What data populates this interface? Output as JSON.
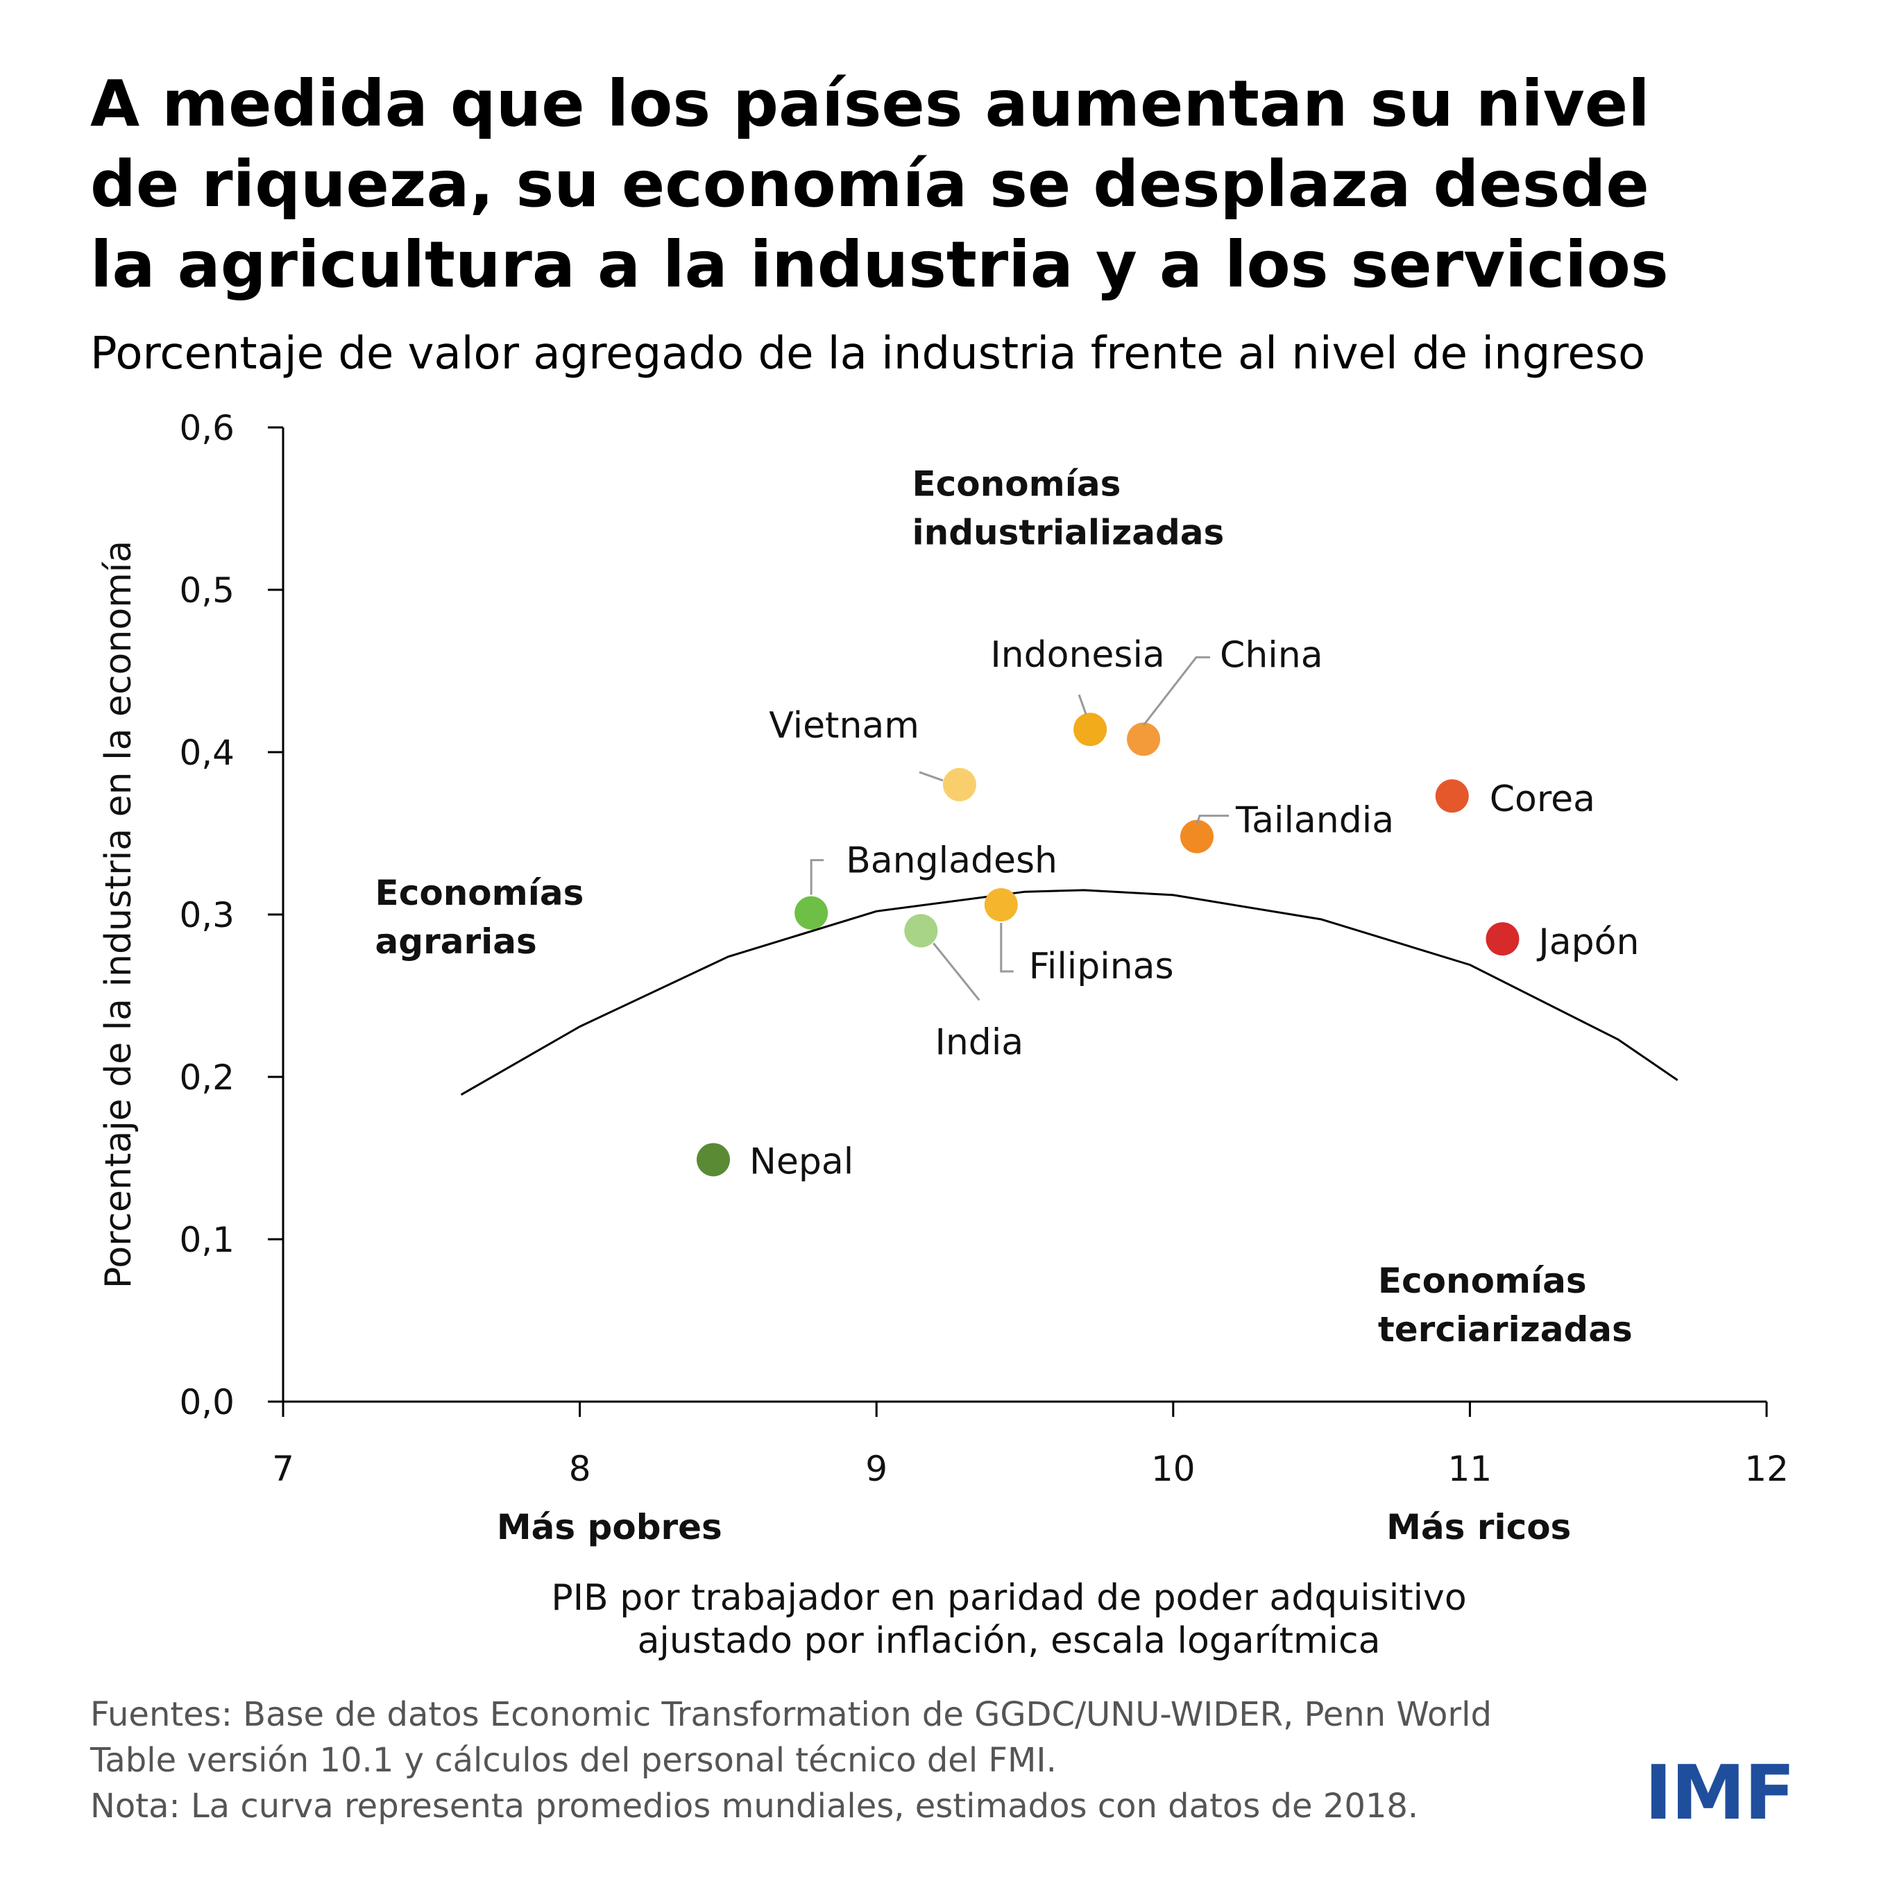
{
  "title_lines": [
    "A medida que los países aumentan su nivel",
    "de riqueza, su economía se desplaza desde",
    "la agricultura a la industria y a los servicios"
  ],
  "subtitle": "Porcentaje de valor agregado de la industria frente al nivel de ingreso",
  "chart_data": {
    "type": "scatter",
    "title": "Porcentaje de valor agregado de la industria frente al nivel de ingreso",
    "xlabel_lines": [
      "PIB por trabajador en paridad de poder adquisitivo",
      "ajustado por inflación, escala logarítmica"
    ],
    "ylabel": "Porcentaje de la industria en la economía",
    "xlim": [
      7,
      12
    ],
    "ylim": [
      0,
      0.6
    ],
    "x_ticks": [
      {
        "value": 7,
        "label": "7"
      },
      {
        "value": 8,
        "label": "8"
      },
      {
        "value": 9,
        "label": "9"
      },
      {
        "value": 10,
        "label": "10"
      },
      {
        "value": 11,
        "label": "11"
      },
      {
        "value": 12,
        "label": "12"
      }
    ],
    "y_ticks": [
      {
        "value": 0,
        "label": "0,0"
      },
      {
        "value": 0.1,
        "label": "0,1"
      },
      {
        "value": 0.2,
        "label": "0,2"
      },
      {
        "value": 0.3,
        "label": "0,3"
      },
      {
        "value": 0.4,
        "label": "0,4"
      },
      {
        "value": 0.5,
        "label": "0,5"
      },
      {
        "value": 0.6,
        "label": "0,6"
      }
    ],
    "x_annotations": [
      {
        "value": 8.1,
        "label": "Más pobres"
      },
      {
        "value": 11.03,
        "label": "Más ricos"
      }
    ],
    "points": [
      {
        "name": "Nepal",
        "x": 8.45,
        "y": 0.149,
        "color": "#5b8a35"
      },
      {
        "name": "Bangladesh",
        "x": 8.78,
        "y": 0.301,
        "color": "#6dbf45"
      },
      {
        "name": "India",
        "x": 9.15,
        "y": 0.29,
        "color": "#a8d487"
      },
      {
        "name": "Vietnam",
        "x": 9.28,
        "y": 0.38,
        "color": "#f9cf6e"
      },
      {
        "name": "Filipinas",
        "x": 9.42,
        "y": 0.306,
        "color": "#f5b52d"
      },
      {
        "name": "Indonesia",
        "x": 9.72,
        "y": 0.414,
        "color": "#f2ab1b"
      },
      {
        "name": "China",
        "x": 9.9,
        "y": 0.408,
        "color": "#f39b3b"
      },
      {
        "name": "Tailandia",
        "x": 10.08,
        "y": 0.348,
        "color": "#f28a24"
      },
      {
        "name": "Corea",
        "x": 10.94,
        "y": 0.373,
        "color": "#e4582b"
      },
      {
        "name": "Japón",
        "x": 11.11,
        "y": 0.285,
        "color": "#d72a2a"
      }
    ],
    "curve": {
      "description": "La curva representa promedios mundiales",
      "x": [
        7.6,
        8.0,
        8.5,
        9.0,
        9.5,
        9.7,
        10.0,
        10.5,
        11.0,
        11.5,
        11.7
      ],
      "y": [
        0.189,
        0.231,
        0.274,
        0.302,
        0.314,
        0.315,
        0.312,
        0.297,
        0.269,
        0.223,
        0.198
      ]
    },
    "region_labels": [
      {
        "lines": [
          "Economías",
          "industrializadas"
        ],
        "x": 9.12,
        "y": 0.558
      },
      {
        "lines": [
          "Economías",
          "agrarias"
        ],
        "x": 7.31,
        "y": 0.306
      },
      {
        "lines": [
          "Economías",
          "terciarizadas"
        ],
        "x": 10.69,
        "y": 0.067
      }
    ]
  },
  "footer": {
    "sources_lines": [
      "Fuentes: Base de datos Economic Transformation de GGDC/UNU-WIDER, Penn World",
      "Table versión 10.1 y cálculos del personal técnico del FMI."
    ],
    "note": "Nota: La curva representa promedios mundiales, estimados con datos de 2018."
  },
  "logo": {
    "text": "IMF",
    "color": "#1f4e9c"
  }
}
